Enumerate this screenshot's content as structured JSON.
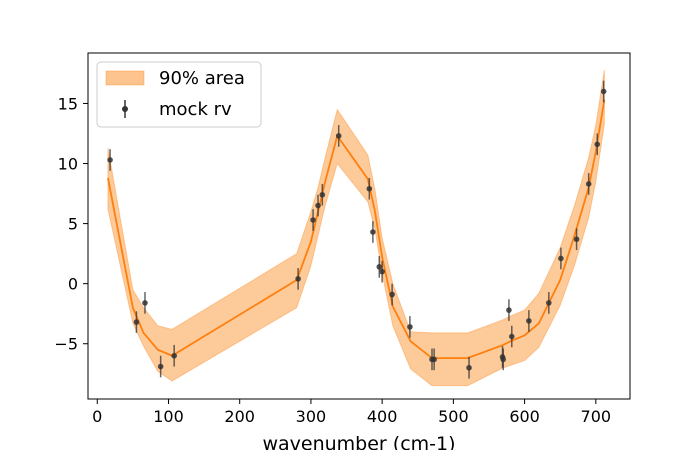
{
  "chart_data": {
    "type": "line",
    "title": "",
    "xlabel": "wavenumber (cm-1)",
    "ylabel": "",
    "xlim": [
      -13,
      748
    ],
    "ylim": [
      -9.6,
      19.2
    ],
    "xticks": [
      0,
      100,
      200,
      300,
      400,
      500,
      600,
      700
    ],
    "yticks": [
      -5,
      0,
      5,
      10,
      15
    ],
    "grid": false,
    "legend": {
      "placement": "top-left",
      "entries": [
        "90% area",
        "mock rv"
      ]
    },
    "colors": {
      "band": "#fdc48f",
      "median": "#ff7f0e",
      "points": "#333333"
    },
    "series": [
      {
        "name": "90% area",
        "kind": "band",
        "x": [
          15,
          50,
          65,
          85,
          105,
          280,
          300,
          310,
          320,
          337,
          380,
          390,
          400,
          415,
          440,
          470,
          500,
          520,
          570,
          580,
          600,
          620,
          650,
          670,
          690,
          700,
          712
        ],
        "lower": [
          6.2,
          -3.3,
          -5.2,
          -7.3,
          -8.1,
          -2.0,
          1.5,
          4.0,
          6.5,
          10.0,
          6.8,
          4.5,
          0.8,
          -3.5,
          -7.1,
          -8.5,
          -8.5,
          -8.5,
          -7.0,
          -6.8,
          -6.4,
          -5.3,
          -1.8,
          1.5,
          5.5,
          8.5,
          13.3
        ],
        "upper": [
          11.3,
          -0.5,
          -2.0,
          -3.5,
          -3.8,
          2.5,
          6.0,
          8.0,
          10.5,
          14.5,
          10.7,
          7.8,
          3.8,
          0.0,
          -4.0,
          -4.1,
          -4.1,
          -4.1,
          -3.0,
          -2.7,
          -2.2,
          -0.8,
          3.0,
          6.5,
          10.5,
          13.2,
          17.8
        ]
      },
      {
        "name": "",
        "kind": "line",
        "x": [
          15,
          50,
          65,
          85,
          105,
          280,
          300,
          310,
          320,
          337,
          380,
          390,
          400,
          415,
          440,
          470,
          500,
          520,
          570,
          580,
          600,
          620,
          650,
          670,
          690,
          700,
          712
        ],
        "y": [
          8.8,
          -2.0,
          -4.1,
          -5.5,
          -6.0,
          0.3,
          3.5,
          6.0,
          8.5,
          12.3,
          8.7,
          6.0,
          2.2,
          -1.9,
          -4.8,
          -6.2,
          -6.2,
          -6.2,
          -5.1,
          -4.8,
          -4.3,
          -3.3,
          0.3,
          4.0,
          8.0,
          11.0,
          15.3
        ]
      },
      {
        "name": "mock rv",
        "kind": "errorbar",
        "x": [
          18,
          55,
          67,
          89,
          108,
          282,
          303,
          310,
          316,
          339,
          382,
          387,
          396,
          400,
          414,
          439,
          470,
          473,
          522,
          569,
          570,
          578,
          582,
          606,
          634,
          651,
          673,
          690,
          702,
          711
        ],
        "y": [
          10.3,
          -3.2,
          -1.6,
          -6.9,
          -6.0,
          0.4,
          5.3,
          6.5,
          7.4,
          12.3,
          7.9,
          4.3,
          1.4,
          1.0,
          -0.9,
          -3.6,
          -6.3,
          -6.3,
          -7.0,
          -6.1,
          -6.3,
          -2.2,
          -4.4,
          -3.1,
          -1.6,
          2.1,
          3.7,
          8.3,
          11.6,
          16.0
        ],
        "yerr": [
          0.9,
          0.9,
          0.9,
          0.9,
          0.9,
          0.9,
          0.9,
          0.9,
          0.9,
          0.9,
          0.9,
          0.9,
          0.9,
          0.9,
          0.9,
          0.9,
          0.9,
          0.9,
          0.9,
          0.9,
          0.9,
          0.9,
          0.9,
          0.9,
          0.9,
          0.9,
          0.9,
          0.9,
          0.9,
          0.9
        ]
      }
    ]
  }
}
